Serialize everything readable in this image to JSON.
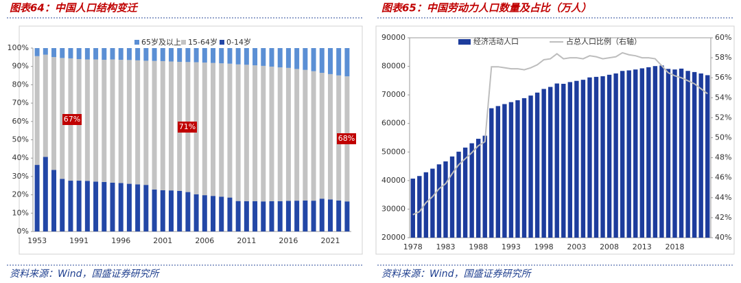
{
  "chart_data": [
    {
      "type": "stacked_bar",
      "title": "图表64：中国人口结构变迁",
      "source": "资料来源：Wind，国盛证券研究所",
      "categories": [
        "1953",
        null,
        null,
        null,
        null,
        "1991",
        null,
        null,
        null,
        null,
        "1996",
        null,
        null,
        null,
        null,
        "2001",
        null,
        null,
        null,
        null,
        "2006",
        null,
        null,
        null,
        null,
        "2011",
        null,
        null,
        null,
        null,
        "2016",
        null,
        null,
        null,
        null,
        "2021",
        null,
        null
      ],
      "series": [
        {
          "name": "0-14岁",
          "color": "#2347a6",
          "values": [
            36.3,
            40.7,
            33.6,
            28.7,
            27.7,
            27.7,
            27.6,
            27.2,
            27.0,
            26.6,
            26.4,
            26.0,
            25.7,
            25.4,
            22.9,
            22.5,
            22.4,
            22.1,
            21.5,
            20.3,
            19.8,
            19.4,
            19.0,
            18.5,
            16.6,
            16.5,
            16.5,
            16.4,
            16.5,
            16.5,
            16.7,
            16.8,
            16.9,
            16.8,
            17.9,
            17.5,
            16.9,
            16.4
          ]
        },
        {
          "name": "15-64岁",
          "color": "#c3c3c3",
          "values": [
            59.3,
            55.7,
            61.5,
            65.9,
            66.7,
            66.3,
            66.2,
            66.6,
            66.6,
            67.2,
            67.2,
            67.5,
            67.6,
            67.7,
            70.1,
            70.4,
            70.3,
            70.4,
            70.9,
            72.0,
            72.3,
            72.5,
            72.7,
            73.0,
            74.5,
            74.4,
            74.1,
            73.9,
            73.4,
            73.0,
            72.5,
            71.8,
            71.2,
            70.6,
            68.6,
            68.3,
            68.2,
            68.2
          ]
        },
        {
          "name": "65岁及以上",
          "color": "#5b8fd4",
          "values": [
            4.4,
            3.6,
            4.9,
            5.4,
            5.6,
            6.0,
            6.2,
            6.2,
            6.4,
            6.2,
            6.4,
            6.5,
            6.7,
            6.9,
            7.0,
            7.1,
            7.3,
            7.5,
            7.6,
            7.7,
            7.9,
            8.1,
            8.3,
            8.5,
            8.9,
            9.1,
            9.4,
            9.7,
            10.1,
            10.5,
            10.8,
            11.4,
            11.9,
            12.6,
            13.5,
            14.2,
            14.9,
            15.4
          ]
        }
      ],
      "annotations": [
        "67%",
        "71%",
        "68%"
      ],
      "ylim": [
        0,
        100
      ],
      "yticks": [
        {
          "value": 0,
          "label": "0%"
        },
        {
          "value": 10,
          "label": "10%"
        },
        {
          "value": 20,
          "label": "20%"
        },
        {
          "value": 30,
          "label": "30%"
        },
        {
          "value": 40,
          "label": "40%"
        },
        {
          "value": 50,
          "label": "50%"
        },
        {
          "value": 60,
          "label": "60%"
        },
        {
          "value": 70,
          "label": "70%"
        },
        {
          "value": 80,
          "label": "80%"
        },
        {
          "value": 90,
          "label": "90%"
        },
        {
          "value": 100,
          "label": "100%"
        }
      ],
      "legend": "top"
    },
    {
      "type": "bar_line",
      "title": "图表65：中国劳动力人口数量及占比（万人）",
      "source": "资料来源：Wind，国盛证券研究所",
      "categories": [
        "1978",
        null,
        null,
        null,
        null,
        "1983",
        null,
        null,
        null,
        null,
        "1988",
        null,
        null,
        null,
        null,
        "1993",
        null,
        null,
        null,
        null,
        "1998",
        null,
        null,
        null,
        null,
        "2003",
        null,
        null,
        null,
        null,
        "2008",
        null,
        null,
        null,
        null,
        "2013",
        null,
        null,
        null,
        null,
        "2018",
        null,
        null,
        null,
        null,
        null
      ],
      "series": [
        {
          "name": "经济活动人口",
          "color": "#1d3c9c",
          "kind": "bar",
          "values": [
            40682,
            41592,
            42903,
            44165,
            45674,
            46707,
            48433,
            50112,
            51546,
            53060,
            54630,
            55707,
            65323,
            66091,
            66782,
            67468,
            68135,
            68855,
            69765,
            70800,
            72087,
            72791,
            73992,
            73884,
            74492,
            74911,
            75290,
            76120,
            76315,
            76531,
            77046,
            77510,
            78388,
            78579,
            78894,
            79300,
            79690,
            80091,
            80300,
            79100,
            78900,
            79200,
            78400,
            78000,
            77500,
            76900
          ]
        },
        {
          "name": "占总人口比例（右轴）",
          "color": "#bdbdbd",
          "kind": "line",
          "axis": "y2",
          "values": [
            42.3,
            42.6,
            43.5,
            44.1,
            44.9,
            45.4,
            46.4,
            47.3,
            47.9,
            48.5,
            49.2,
            49.6,
            57.1,
            57.1,
            57.0,
            56.9,
            56.9,
            56.8,
            57.0,
            57.3,
            57.8,
            57.9,
            58.4,
            57.9,
            58.0,
            58.0,
            57.9,
            58.2,
            58.1,
            57.9,
            58.0,
            58.1,
            58.5,
            58.3,
            58.2,
            58.0,
            58.0,
            57.9,
            57.2,
            56.5,
            56.2,
            56.0,
            55.7,
            55.4,
            54.9,
            54.4
          ]
        }
      ],
      "ylim": [
        20000,
        90000
      ],
      "yticks": [
        20000,
        30000,
        40000,
        50000,
        60000,
        70000,
        80000,
        90000
      ],
      "y2lim": [
        40,
        60
      ],
      "y2ticks": [
        {
          "value": 40,
          "label": "40%"
        },
        {
          "value": 42,
          "label": "42%"
        },
        {
          "value": 44,
          "label": "44%"
        },
        {
          "value": 46,
          "label": "46%"
        },
        {
          "value": 48,
          "label": "48%"
        },
        {
          "value": 50,
          "label": "50%"
        },
        {
          "value": 52,
          "label": "52%"
        },
        {
          "value": 54,
          "label": "54%"
        },
        {
          "value": 56,
          "label": "56%"
        },
        {
          "value": 58,
          "label": "58%"
        },
        {
          "value": 60,
          "label": "60%"
        }
      ],
      "legend": "top"
    }
  ]
}
